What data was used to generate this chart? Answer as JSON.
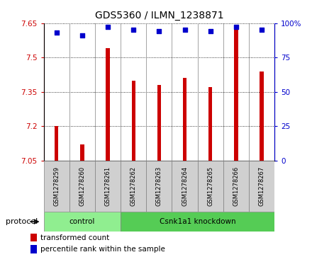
{
  "title": "GDS5360 / ILMN_1238871",
  "samples": [
    "GSM1278259",
    "GSM1278260",
    "GSM1278261",
    "GSM1278262",
    "GSM1278263",
    "GSM1278264",
    "GSM1278265",
    "GSM1278266",
    "GSM1278267"
  ],
  "bar_values": [
    7.2,
    7.12,
    7.54,
    7.4,
    7.38,
    7.41,
    7.37,
    7.64,
    7.44
  ],
  "blue_values": [
    93,
    91,
    97,
    95,
    94,
    95,
    94,
    97,
    95
  ],
  "ylim_left": [
    7.05,
    7.65
  ],
  "yticks_left": [
    7.05,
    7.2,
    7.35,
    7.5,
    7.65
  ],
  "ylim_right": [
    0,
    100
  ],
  "yticks_right": [
    0,
    25,
    50,
    75,
    100
  ],
  "ytick_labels_right": [
    "0",
    "25",
    "50",
    "75",
    "100%"
  ],
  "bar_color": "#CC0000",
  "blue_color": "#0000CC",
  "sample_box_color": "#d0d0d0",
  "control_color": "#90EE90",
  "knockdown_color": "#55CC55",
  "legend_bar_label": "transformed count",
  "legend_blue_label": "percentile rank within the sample",
  "protocol_label": "protocol",
  "ybase": 7.05,
  "bar_width": 0.15,
  "blue_marker_size": 18
}
